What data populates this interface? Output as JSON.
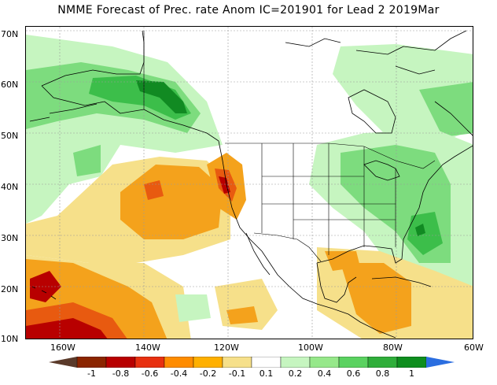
{
  "title": "NMME Forecast of Prec. rate Anom IC=201901 for Lead 2 2019Mar",
  "map": {
    "lat_labels": [
      "70N",
      "60N",
      "50N",
      "40N",
      "30N",
      "20N",
      "10N"
    ],
    "lon_labels": [
      "160W",
      "140W",
      "120W",
      "100W",
      "80W",
      "60W"
    ]
  },
  "colorbar": {
    "labels": [
      "-1",
      "-0.8",
      "-0.6",
      "-0.4",
      "-0.2",
      "-0.1",
      "0.1",
      "0.2",
      "0.4",
      "0.6",
      "0.8",
      "1"
    ],
    "colors": [
      "#8b2500",
      "#b80000",
      "#e83010",
      "#ff8c00",
      "#ffb000",
      "#f6e08a",
      "#ffffff",
      "#c6f5c0",
      "#96e88a",
      "#5ad260",
      "#2fae3a",
      "#0e8e1e",
      "#2b6ee0"
    ],
    "under_color": "#5a3a2a",
    "over_color": "#2b6ee0"
  },
  "palette": {
    "dry_strong": "#b80000",
    "dry_mod": "#e85a10",
    "dry": "#f4a21c",
    "dry_light": "#f6e08a",
    "wet_light": "#c6f5c0",
    "wet": "#7ddc7e",
    "wet_mod": "#3cbe4a",
    "wet_strong": "#118a22"
  }
}
